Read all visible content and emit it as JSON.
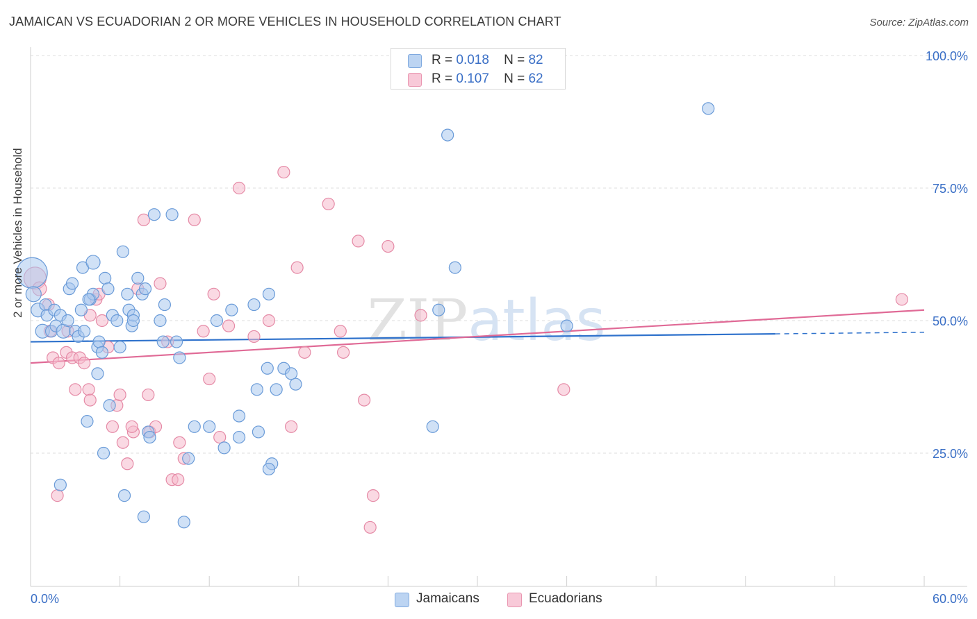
{
  "title": "JAMAICAN VS ECUADORIAN 2 OR MORE VEHICLES IN HOUSEHOLD CORRELATION CHART",
  "source": "Source: ZipAtlas.com",
  "watermark": "ZIPatlas",
  "colors": {
    "blue_fill": "#a9c8ee",
    "blue_stroke": "#6a9bd8",
    "blue_line": "#2f72cc",
    "pink_fill": "#f5b9cc",
    "pink_stroke": "#e58aa6",
    "pink_line": "#e06a96",
    "axis_text": "#3a6fc6",
    "grid": "#dddddd"
  },
  "legend": {
    "r_label": "R =",
    "n_label": "N =",
    "jamaicans": {
      "r": "0.018",
      "n": "82"
    },
    "ecuadorians": {
      "r": "0.107",
      "n": "62"
    }
  },
  "bottom_legend": {
    "jamaicans": "Jamaicans",
    "ecuadorians": "Ecuadorians"
  },
  "chart_data": {
    "type": "scatter",
    "xlabel": "",
    "ylabel": "2 or more Vehicles in Household",
    "xlim": [
      0,
      60
    ],
    "ylim": [
      0,
      105
    ],
    "x_tick_labels": [
      "0.0%",
      "60.0%"
    ],
    "y_ticks": [
      25,
      50,
      75,
      100
    ],
    "y_tick_labels": [
      "25.0%",
      "50.0%",
      "75.0%",
      "100.0%"
    ],
    "grid": true,
    "series": [
      {
        "name": "Jamaicans",
        "r": 0.018,
        "n": 82,
        "trend": {
          "x0": 0,
          "y0": 46.0,
          "x1": 50.0,
          "y1": 47.5,
          "dashed_to_x": 60,
          "dashed_to_y": 47.8
        },
        "points": [
          [
            0.1,
            59,
            10
          ],
          [
            0.2,
            55,
            4
          ],
          [
            0.5,
            52,
            3
          ],
          [
            0.8,
            48,
            3
          ],
          [
            1.0,
            53,
            2
          ],
          [
            1.1,
            51,
            2
          ],
          [
            1.4,
            48,
            2
          ],
          [
            1.6,
            52,
            2
          ],
          [
            1.7,
            49,
            2
          ],
          [
            2.0,
            51,
            2
          ],
          [
            2.2,
            48,
            3
          ],
          [
            2.5,
            50,
            2
          ],
          [
            2.6,
            56,
            2
          ],
          [
            2.8,
            57,
            2
          ],
          [
            3.0,
            48,
            2
          ],
          [
            3.2,
            47,
            2
          ],
          [
            3.4,
            52,
            2
          ],
          [
            3.5,
            60,
            2
          ],
          [
            3.6,
            48,
            2
          ],
          [
            4.0,
            54,
            2
          ],
          [
            4.2,
            55,
            2
          ],
          [
            4.2,
            61,
            3
          ],
          [
            4.5,
            40,
            2
          ],
          [
            4.5,
            45,
            2
          ],
          [
            4.6,
            46,
            2
          ],
          [
            4.8,
            44,
            2
          ],
          [
            5.0,
            58,
            2
          ],
          [
            5.2,
            56,
            2
          ],
          [
            5.5,
            51,
            2
          ],
          [
            5.8,
            50,
            2
          ],
          [
            6.0,
            45,
            2
          ],
          [
            6.2,
            63,
            2
          ],
          [
            6.5,
            55,
            2
          ],
          [
            6.6,
            52,
            2
          ],
          [
            6.8,
            49,
            2
          ],
          [
            6.9,
            51,
            2
          ],
          [
            7.2,
            58,
            2
          ],
          [
            7.5,
            55,
            2
          ],
          [
            7.7,
            56,
            2
          ],
          [
            7.9,
            29,
            2
          ],
          [
            8.0,
            28,
            2
          ],
          [
            8.3,
            70,
            2
          ],
          [
            8.7,
            50,
            2
          ],
          [
            8.9,
            46,
            2
          ],
          [
            9.0,
            53,
            2
          ],
          [
            9.5,
            70,
            2
          ],
          [
            10.0,
            43,
            2
          ],
          [
            11.0,
            30,
            2
          ],
          [
            12.0,
            30,
            2
          ],
          [
            12.5,
            50,
            2
          ],
          [
            13.0,
            26,
            2
          ],
          [
            13.5,
            52,
            2
          ],
          [
            14.0,
            28,
            2
          ],
          [
            14.0,
            32,
            2
          ],
          [
            15.0,
            53,
            2
          ],
          [
            15.2,
            37,
            2
          ],
          [
            15.9,
            41,
            2
          ],
          [
            16.0,
            55,
            2
          ],
          [
            16.5,
            37,
            2
          ],
          [
            17.0,
            41,
            2
          ],
          [
            17.5,
            40,
            2
          ],
          [
            17.8,
            38,
            2
          ],
          [
            16.2,
            23,
            2
          ],
          [
            16.0,
            22,
            2
          ],
          [
            7.6,
            13,
            2
          ],
          [
            10.6,
            24,
            2
          ],
          [
            10.3,
            12,
            2
          ],
          [
            6.3,
            17,
            2
          ],
          [
            2.0,
            19,
            2
          ],
          [
            4.9,
            25,
            2
          ],
          [
            5.3,
            34,
            2
          ],
          [
            3.8,
            31,
            2
          ],
          [
            27.0,
            30,
            2
          ],
          [
            27.4,
            52,
            2
          ],
          [
            28.5,
            60,
            2
          ],
          [
            28.0,
            85,
            2
          ],
          [
            36.0,
            49,
            2
          ],
          [
            45.5,
            90,
            2
          ],
          [
            6.9,
            50,
            2
          ],
          [
            9.8,
            46,
            2
          ],
          [
            3.9,
            54,
            2
          ],
          [
            15.3,
            29,
            2
          ]
        ]
      },
      {
        "name": "Ecuadorians",
        "r": 0.107,
        "n": 62,
        "trend": {
          "x0": 0,
          "y0": 42.0,
          "x1": 60,
          "y1": 52.0
        },
        "points": [
          [
            0.3,
            58,
            5
          ],
          [
            0.6,
            56,
            3
          ],
          [
            1.2,
            53,
            2
          ],
          [
            1.3,
            48,
            2
          ],
          [
            1.5,
            43,
            2
          ],
          [
            1.9,
            42,
            2
          ],
          [
            2.4,
            44,
            2
          ],
          [
            2.5,
            48,
            2
          ],
          [
            2.8,
            43,
            2
          ],
          [
            3.0,
            37,
            2
          ],
          [
            3.3,
            43,
            2
          ],
          [
            3.6,
            42,
            2
          ],
          [
            3.9,
            37,
            2
          ],
          [
            4.0,
            35,
            2
          ],
          [
            4.4,
            54,
            2
          ],
          [
            4.6,
            55,
            2
          ],
          [
            4.8,
            50,
            2
          ],
          [
            5.2,
            45,
            2
          ],
          [
            5.5,
            30,
            2
          ],
          [
            5.8,
            34,
            2
          ],
          [
            6.0,
            36,
            2
          ],
          [
            6.2,
            27,
            2
          ],
          [
            6.5,
            23,
            2
          ],
          [
            6.9,
            29,
            2
          ],
          [
            7.2,
            56,
            2
          ],
          [
            7.6,
            69,
            2
          ],
          [
            7.9,
            36,
            2
          ],
          [
            8.0,
            29,
            2
          ],
          [
            8.4,
            30,
            2
          ],
          [
            8.7,
            57,
            2
          ],
          [
            9.2,
            46,
            2
          ],
          [
            9.5,
            20,
            2
          ],
          [
            9.9,
            20,
            2
          ],
          [
            10.3,
            24,
            2
          ],
          [
            11.0,
            69,
            2
          ],
          [
            11.6,
            48,
            2
          ],
          [
            12.0,
            39,
            2
          ],
          [
            12.7,
            28,
            2
          ],
          [
            13.3,
            49,
            2
          ],
          [
            14.0,
            75,
            2
          ],
          [
            15.0,
            47,
            2
          ],
          [
            16.0,
            50,
            2
          ],
          [
            17.0,
            78,
            2
          ],
          [
            17.9,
            60,
            2
          ],
          [
            20.0,
            72,
            2
          ],
          [
            20.8,
            48,
            2
          ],
          [
            21.0,
            44,
            2
          ],
          [
            22.0,
            65,
            2
          ],
          [
            22.4,
            35,
            2
          ],
          [
            23.0,
            17,
            2
          ],
          [
            24.0,
            64,
            2
          ],
          [
            22.8,
            11,
            2
          ],
          [
            26.2,
            51,
            2
          ],
          [
            35.8,
            37,
            2
          ],
          [
            58.5,
            54,
            2
          ],
          [
            4.0,
            51,
            2
          ],
          [
            6.8,
            30,
            2
          ],
          [
            10.0,
            27,
            2
          ],
          [
            1.8,
            17,
            2
          ],
          [
            12.3,
            55,
            2
          ],
          [
            17.5,
            30,
            2
          ],
          [
            18.4,
            44,
            2
          ]
        ]
      }
    ]
  }
}
